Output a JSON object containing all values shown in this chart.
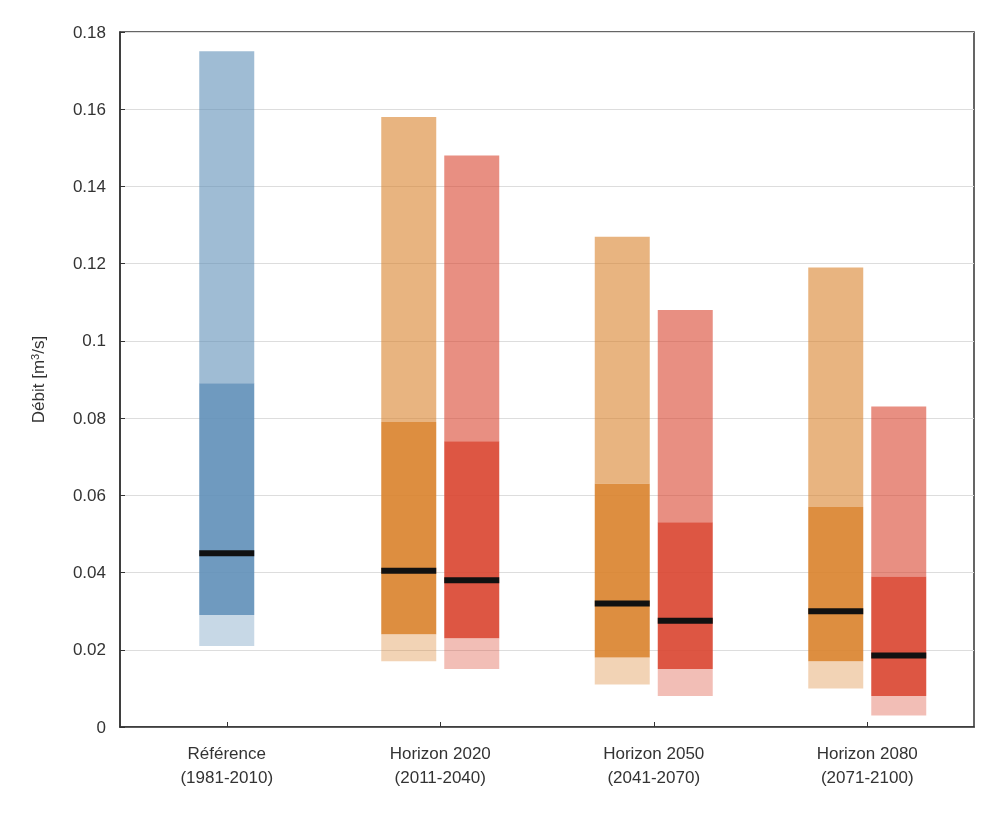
{
  "chart_data": {
    "type": "box",
    "ylabel": "Débit [m$^{3}$/s]",
    "categories": [
      "Référence\n(1981-2010)",
      "Horizon 2020\n(2011-2040)",
      "Horizon 2050\n(2041-2070)",
      "Horizon 2080\n(2071-2100)"
    ],
    "ylim": [
      0,
      0.18
    ],
    "yticks": [
      0,
      0.02,
      0.04,
      0.06,
      0.08,
      0.1,
      0.12,
      0.14,
      0.16,
      0.18
    ],
    "grid": "y",
    "series": [
      {
        "color": "#5f8fb8",
        "boxes": [
          {
            "low": 0.021,
            "q1": 0.029,
            "median": 0.045,
            "q3": 0.089,
            "high": 0.175
          },
          null,
          null,
          null
        ]
      },
      {
        "color": "#d9822b",
        "boxes": [
          null,
          {
            "low": 0.017,
            "q1": 0.024,
            "median": 0.0405,
            "q3": 0.079,
            "high": 0.158
          },
          {
            "low": 0.011,
            "q1": 0.018,
            "median": 0.032,
            "q3": 0.063,
            "high": 0.127
          },
          {
            "low": 0.01,
            "q1": 0.017,
            "median": 0.03,
            "q3": 0.057,
            "high": 0.119
          }
        ]
      },
      {
        "color": "#d9442f",
        "boxes": [
          null,
          {
            "low": 0.015,
            "q1": 0.023,
            "median": 0.038,
            "q3": 0.074,
            "high": 0.148
          },
          {
            "low": 0.008,
            "q1": 0.015,
            "median": 0.0275,
            "q3": 0.053,
            "high": 0.108
          },
          {
            "low": 0.003,
            "q1": 0.008,
            "median": 0.0185,
            "q3": 0.039,
            "high": 0.083
          }
        ]
      }
    ]
  }
}
